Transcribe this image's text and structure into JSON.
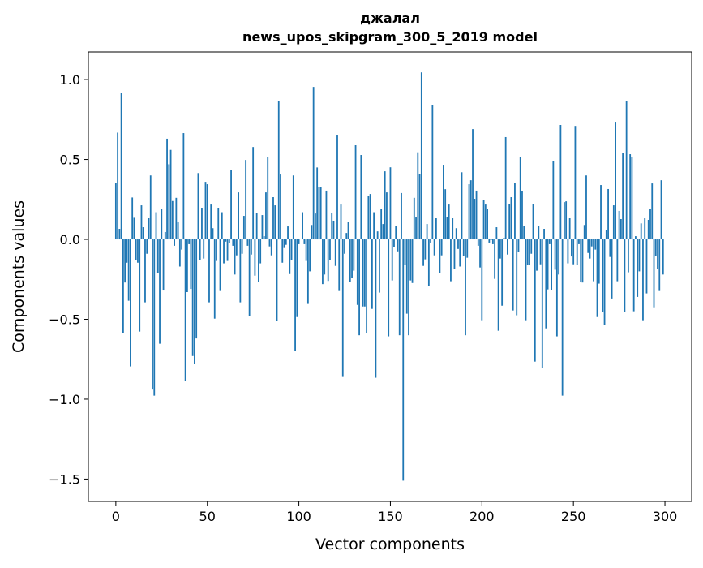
{
  "chart_data": {
    "type": "bar",
    "title": "джалал",
    "subtitle": "news_upos_skipgram_300_5_2019 model",
    "xlabel": "Vector components",
    "ylabel": "Components values",
    "xlim": [
      -15,
      314.6
    ],
    "ylim": [
      -1.64,
      1.173
    ],
    "xticks": [
      0,
      50,
      100,
      150,
      200,
      250,
      300
    ],
    "xtick_labels": [
      "0",
      "50",
      "100",
      "150",
      "200",
      "250",
      "300"
    ],
    "yticks": [
      -1.5,
      -1.0,
      -0.5,
      0.0,
      0.5,
      1.0
    ],
    "ytick_labels": [
      "−1.5",
      "−1.0",
      "−0.5",
      "0.0",
      "0.5",
      "1.0"
    ],
    "grid": false,
    "bar_color": "#1f77b4",
    "x_start": 0,
    "values": [
      0.355,
      0.668,
      0.066,
      0.914,
      -0.584,
      -0.27,
      -0.146,
      -0.384,
      -0.795,
      0.262,
      0.135,
      -0.127,
      -0.146,
      -0.577,
      0.213,
      0.076,
      -0.394,
      -0.09,
      0.132,
      0.4,
      -0.94,
      -0.978,
      0.17,
      -0.21,
      -0.653,
      0.19,
      -0.32,
      0.046,
      0.63,
      0.47,
      0.56,
      0.24,
      -0.04,
      0.26,
      0.107,
      -0.17,
      -0.064,
      0.665,
      -0.887,
      -0.33,
      -0.03,
      -0.31,
      -0.73,
      -0.78,
      -0.62,
      0.415,
      -0.13,
      0.198,
      -0.12,
      0.36,
      0.345,
      -0.394,
      0.218,
      0.07,
      -0.496,
      -0.135,
      0.198,
      -0.323,
      0.17,
      -0.15,
      -0.014,
      -0.135,
      -0.025,
      0.436,
      -0.04,
      -0.22,
      -0.1,
      0.294,
      -0.394,
      -0.09,
      0.147,
      0.497,
      -0.04,
      -0.48,
      -0.095,
      0.578,
      -0.227,
      0.167,
      -0.267,
      -0.15,
      0.152,
      0.02,
      0.294,
      0.513,
      -0.044,
      -0.1,
      0.264,
      0.213,
      -0.51,
      0.868,
      0.406,
      -0.146,
      -0.054,
      -0.034,
      0.081,
      -0.217,
      -0.13,
      0.4,
      -0.7,
      -0.486,
      -0.03,
      0.005,
      0.17,
      -0.03,
      -0.135,
      -0.404,
      -0.2,
      0.09,
      0.954,
      0.162,
      0.45,
      0.325,
      0.325,
      -0.28,
      -0.22,
      0.305,
      -0.26,
      -0.13,
      0.167,
      0.117,
      -0.166,
      0.655,
      -0.323,
      0.218,
      -0.856,
      -0.09,
      0.04,
      0.107,
      -0.267,
      -0.242,
      -0.196,
      0.589,
      -0.41,
      -0.6,
      0.528,
      -0.42,
      -0.42,
      -0.587,
      0.274,
      0.284,
      -0.435,
      0.17,
      -0.866,
      0.05,
      -0.333,
      0.188,
      0.096,
      0.426,
      0.294,
      -0.607,
      0.451,
      -0.257,
      -0.05,
      0.086,
      -0.075,
      -0.6,
      0.29,
      -1.51,
      -0.16,
      -0.465,
      -0.6,
      -0.257,
      -0.273,
      0.26,
      0.137,
      0.545,
      0.407,
      1.045,
      -0.166,
      -0.125,
      0.096,
      -0.293,
      -0.02,
      0.842,
      -0.1,
      0.132,
      0.005,
      -0.21,
      -0.1,
      0.467,
      0.314,
      0.142,
      0.218,
      -0.262,
      0.132,
      -0.187,
      0.07,
      -0.06,
      -0.17,
      0.42,
      -0.105,
      -0.6,
      -0.115,
      0.345,
      0.37,
      0.69,
      0.254,
      0.305,
      -0.04,
      -0.176,
      -0.506,
      0.244,
      0.218,
      0.193,
      -0.02,
      -0.005,
      -0.03,
      -0.247,
      0.076,
      -0.572,
      -0.12,
      -0.415,
      0.01,
      0.64,
      -0.095,
      0.223,
      0.264,
      -0.445,
      0.355,
      -0.475,
      -0.08,
      0.518,
      0.3,
      0.086,
      -0.506,
      -0.16,
      -0.16,
      -0.09,
      0.223,
      -0.765,
      -0.196,
      0.086,
      -0.156,
      -0.805,
      0.066,
      -0.557,
      -0.313,
      -0.03,
      -0.318,
      0.49,
      -0.19,
      -0.607,
      -0.22,
      0.716,
      -0.978,
      0.233,
      0.238,
      -0.15,
      0.132,
      -0.107,
      -0.156,
      0.71,
      -0.16,
      -0.03,
      -0.267,
      -0.27,
      0.09,
      0.4,
      -0.085,
      -0.12,
      -0.044,
      -0.262,
      -0.064,
      -0.486,
      -0.277,
      0.34,
      -0.455,
      -0.536,
      0.06,
      0.315,
      -0.11,
      -0.37,
      0.213,
      0.736,
      -0.262,
      0.178,
      0.127,
      0.543,
      -0.455,
      0.868,
      -0.206,
      0.533,
      0.513,
      -0.45,
      0.02,
      -0.36,
      -0.2,
      0.1,
      -0.506,
      0.132,
      -0.338,
      0.122,
      0.193,
      0.35,
      -0.425,
      -0.105,
      -0.186,
      -0.323,
      0.37,
      -0.22
    ]
  }
}
